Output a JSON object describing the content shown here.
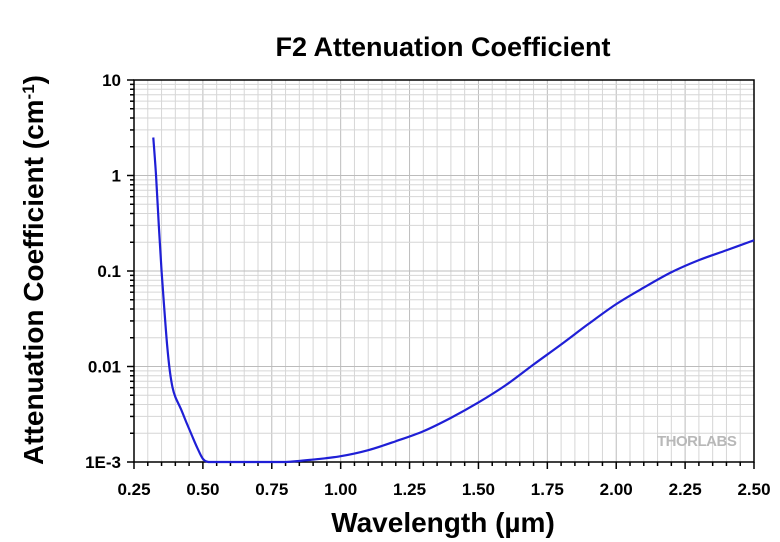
{
  "chart_data": {
    "type": "line",
    "title": "F2 Attenuation Coefficient",
    "xlabel": "Wavelength (µm)",
    "ylabel": "Attenuation Coefficient (cm",
    "ylabel_sup": "-1",
    "ylabel_close": ")",
    "xlim": [
      0.25,
      2.5
    ],
    "ylim": [
      0.001,
      10
    ],
    "yscale": "log",
    "grid": true,
    "x_ticks": [
      0.25,
      0.5,
      0.75,
      1.0,
      1.25,
      1.5,
      1.75,
      2.0,
      2.25,
      2.5
    ],
    "x_tick_labels": [
      "0.25",
      "0.50",
      "0.75",
      "1.00",
      "1.25",
      "1.50",
      "1.75",
      "2.00",
      "2.25",
      "2.50"
    ],
    "y_ticks": [
      0.001,
      0.01,
      0.1,
      1,
      10
    ],
    "y_tick_labels": [
      "1E-3",
      "0.01",
      "0.1",
      "1",
      "10"
    ],
    "series": [
      {
        "color": "#1f1fd6",
        "x": [
          0.32,
          0.33,
          0.34,
          0.35,
          0.36,
          0.37,
          0.38,
          0.39,
          0.4,
          0.42,
          0.44,
          0.46,
          0.48,
          0.5,
          0.52,
          0.55,
          0.6,
          0.7,
          0.8,
          0.9,
          1.0,
          1.1,
          1.2,
          1.3,
          1.4,
          1.5,
          1.6,
          1.7,
          1.8,
          1.9,
          2.0,
          2.1,
          2.2,
          2.3,
          2.4,
          2.5
        ],
        "y": [
          2.5,
          1.0,
          0.3,
          0.1,
          0.04,
          0.017,
          0.009,
          0.006,
          0.0048,
          0.0036,
          0.0026,
          0.0019,
          0.0014,
          0.00108,
          0.001,
          0.001,
          0.001,
          0.001,
          0.001,
          0.00106,
          0.00115,
          0.00133,
          0.00165,
          0.0021,
          0.0029,
          0.0042,
          0.0064,
          0.0105,
          0.017,
          0.028,
          0.045,
          0.067,
          0.097,
          0.13,
          0.165,
          0.21
        ]
      }
    ]
  },
  "watermark": {
    "logo": "THORLABS"
  }
}
